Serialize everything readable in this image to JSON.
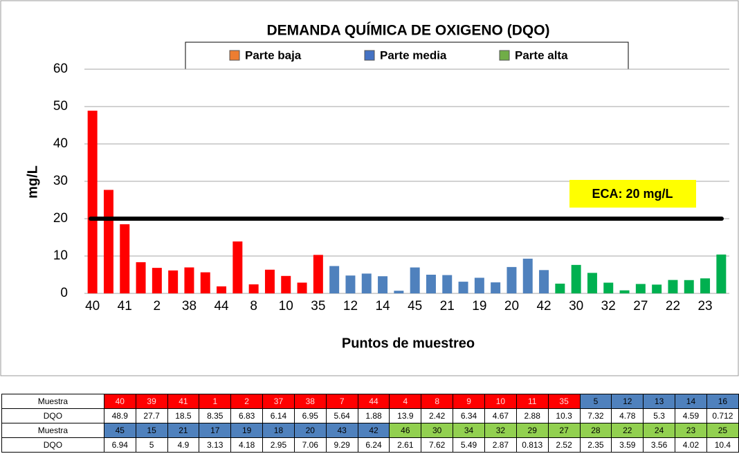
{
  "chart_data": {
    "type": "bar",
    "title": "DEMANDA QUÍMICA DE OXIGENO (DQO)",
    "x_label": "Puntos de muestreo",
    "y_label": "mg/L",
    "legend": [
      {
        "name": "Parte baja",
        "color": "#ed7d31"
      },
      {
        "name": "Parte media",
        "color": "#4472c4"
      },
      {
        "name": "Parte alta",
        "color": "#70ad47"
      }
    ],
    "categories": [
      40,
      null,
      41,
      null,
      2,
      null,
      38,
      null,
      44,
      null,
      8,
      null,
      10,
      null,
      35,
      null,
      12,
      null,
      14,
      null,
      45,
      null,
      21,
      null,
      19,
      null,
      20,
      null,
      42,
      null,
      30,
      null,
      32,
      null,
      27,
      null,
      22,
      null,
      23,
      null
    ],
    "values": [
      48.9,
      27.7,
      18.5,
      8.35,
      6.83,
      6.14,
      6.95,
      5.64,
      1.88,
      13.9,
      2.42,
      6.34,
      4.67,
      2.88,
      10.3,
      7.32,
      4.78,
      5.3,
      4.59,
      0.712,
      6.94,
      5,
      4.9,
      3.13,
      4.18,
      2.95,
      7.06,
      9.29,
      6.24,
      2.61,
      7.62,
      5.49,
      2.87,
      0.813,
      2.52,
      2.35,
      3.59,
      3.56,
      4.02,
      10.4
    ],
    "colors": [
      "#ff0000",
      "#ff0000",
      "#ff0000",
      "#ff0000",
      "#ff0000",
      "#ff0000",
      "#ff0000",
      "#ff0000",
      "#ff0000",
      "#ff0000",
      "#ff0000",
      "#ff0000",
      "#ff0000",
      "#ff0000",
      "#ff0000",
      "#4f81bd",
      "#4f81bd",
      "#4f81bd",
      "#4f81bd",
      "#4f81bd",
      "#4f81bd",
      "#4f81bd",
      "#4f81bd",
      "#4f81bd",
      "#4f81bd",
      "#4f81bd",
      "#4f81bd",
      "#4f81bd",
      "#4f81bd",
      "#00b050",
      "#00b050",
      "#00b050",
      "#00b050",
      "#00b050",
      "#00b050",
      "#00b050",
      "#00b050",
      "#00b050",
      "#00b050",
      "#00b050"
    ],
    "ylim": [
      0,
      60
    ],
    "yticks": [
      0,
      10,
      20,
      30,
      40,
      50,
      60
    ],
    "grid": true,
    "reference_line": {
      "value": 20,
      "label": "ECA: 20 mg/L",
      "color": "#000000",
      "label_background": "#ffff00"
    }
  },
  "table": {
    "rows": [
      [
        "Muestra",
        40,
        39,
        41,
        1,
        2,
        37,
        38,
        7,
        44,
        4,
        8,
        9,
        10,
        11,
        35,
        5,
        12,
        13,
        14,
        16
      ],
      [
        "DQO",
        48.9,
        27.7,
        18.5,
        8.35,
        6.83,
        6.14,
        6.95,
        5.64,
        1.88,
        13.9,
        2.42,
        6.34,
        4.67,
        2.88,
        10.3,
        7.32,
        4.78,
        5.3,
        4.59,
        0.712
      ],
      [
        "Muestra",
        45,
        15,
        21,
        17,
        19,
        18,
        20,
        43,
        42,
        46,
        30,
        34,
        32,
        29,
        27,
        28,
        22,
        24,
        23,
        25
      ],
      [
        "DQO",
        6.94,
        5,
        4.9,
        3.13,
        4.18,
        2.95,
        7.06,
        9.29,
        6.24,
        2.61,
        7.62,
        5.49,
        2.87,
        0.813,
        2.52,
        2.35,
        3.59,
        3.56,
        4.02,
        10.4
      ]
    ],
    "cell_colors": [
      [
        "#ff0000",
        "#ff0000",
        "#ff0000",
        "#ff0000",
        "#ff0000",
        "#ff0000",
        "#ff0000",
        "#ff0000",
        "#ff0000",
        "#ff0000",
        "#ff0000",
        "#ff0000",
        "#ff0000",
        "#ff0000",
        "#ff0000",
        "#4f81bd",
        "#4f81bd",
        "#4f81bd",
        "#4f81bd",
        "#4f81bd"
      ],
      null,
      [
        "#4f81bd",
        "#4f81bd",
        "#4f81bd",
        "#4f81bd",
        "#4f81bd",
        "#4f81bd",
        "#4f81bd",
        "#4f81bd",
        "#4f81bd",
        "#92d050",
        "#92d050",
        "#92d050",
        "#92d050",
        "#92d050",
        "#92d050",
        "#92d050",
        "#92d050",
        "#92d050",
        "#92d050",
        "#92d050"
      ],
      null
    ]
  }
}
